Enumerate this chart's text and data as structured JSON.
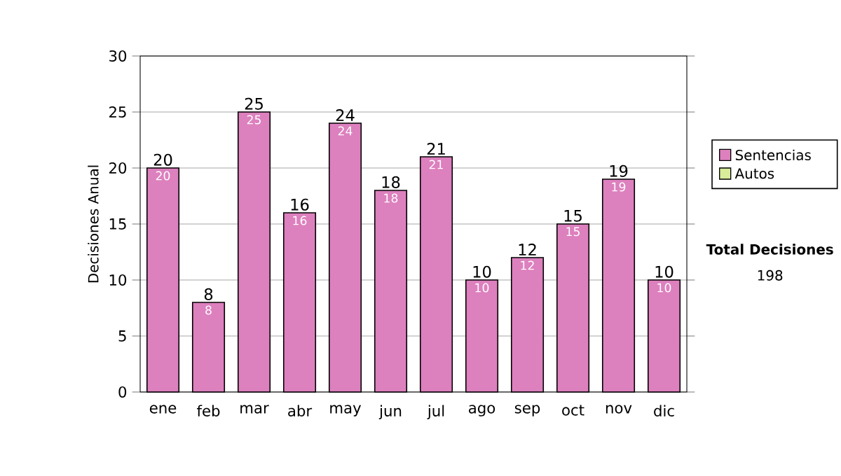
{
  "chart_data": {
    "type": "bar",
    "ylabel": "Decisiones Anual",
    "categories": [
      "ene",
      "feb",
      "mar",
      "abr",
      "may",
      "jun",
      "jul",
      "ago",
      "sep",
      "oct",
      "nov",
      "dic"
    ],
    "series": [
      {
        "name": "Sentencias",
        "color": "#dd80be",
        "values": [
          20,
          8,
          25,
          16,
          24,
          18,
          21,
          10,
          12,
          15,
          19,
          10
        ],
        "value_labels": [
          "20",
          "8",
          "25",
          "16",
          "24",
          "18",
          "21",
          "10",
          "12",
          "15",
          "19",
          "10"
        ]
      },
      {
        "name": "Autos",
        "color": "#d8ec9c",
        "values": [
          null,
          null,
          null,
          null,
          null,
          null,
          null,
          null,
          null,
          null,
          null,
          null
        ]
      }
    ],
    "stacked": true,
    "totals": [
      "20",
      "8",
      "25",
      "16",
      "24",
      "18",
      "21",
      "10",
      "12",
      "15",
      "19",
      "10"
    ],
    "ylim": [
      0,
      30
    ],
    "yticks": [
      0,
      5,
      10,
      15,
      20,
      25,
      30
    ],
    "grid": "y",
    "legend": "right",
    "annotations": [
      "Total Decisiones",
      "198"
    ]
  }
}
